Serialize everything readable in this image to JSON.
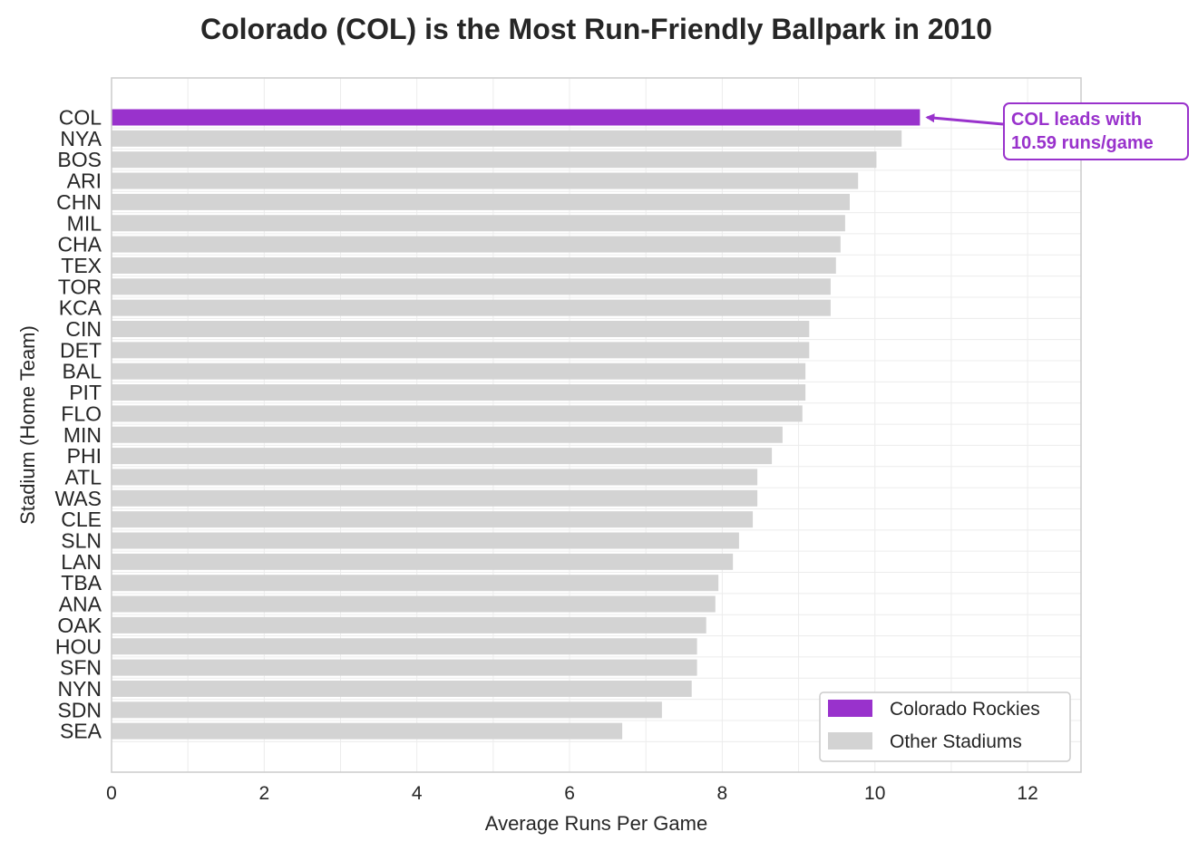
{
  "chart_data": {
    "type": "bar",
    "orientation": "horizontal",
    "title": "Colorado (COL) is the Most Run-Friendly Ballpark in 2010",
    "xlabel": "Average Runs Per Game",
    "ylabel": "Stadium (Home Team)",
    "xlim": [
      0,
      12.7
    ],
    "xticks": [
      0,
      2,
      4,
      6,
      8,
      10,
      12
    ],
    "grid": true,
    "legend_position": "bottom-right",
    "categories": [
      "COL",
      "NYA",
      "BOS",
      "ARI",
      "CHN",
      "MIL",
      "CHA",
      "TEX",
      "TOR",
      "KCA",
      "CIN",
      "DET",
      "BAL",
      "PIT",
      "FLO",
      "MIN",
      "PHI",
      "ATL",
      "WAS",
      "CLE",
      "SLN",
      "LAN",
      "TBA",
      "ANA",
      "OAK",
      "HOU",
      "SFN",
      "NYN",
      "SDN",
      "SEA"
    ],
    "values": [
      10.59,
      10.35,
      10.02,
      9.78,
      9.67,
      9.61,
      9.55,
      9.49,
      9.42,
      9.42,
      9.14,
      9.14,
      9.09,
      9.09,
      9.05,
      8.79,
      8.65,
      8.46,
      8.46,
      8.4,
      8.22,
      8.14,
      7.95,
      7.91,
      7.79,
      7.67,
      7.67,
      7.6,
      7.21,
      6.69
    ],
    "highlight_index": 0,
    "colors": {
      "highlight": "#9932CC",
      "other": "#D3D3D3"
    },
    "legend": [
      {
        "label": "Colorado Rockies",
        "color": "#9932CC"
      },
      {
        "label": "Other Stadiums",
        "color": "#D3D3D3"
      }
    ],
    "annotation": {
      "lines": [
        "COL leads with",
        "10.59 runs/game"
      ],
      "color": "#9932CC"
    }
  }
}
